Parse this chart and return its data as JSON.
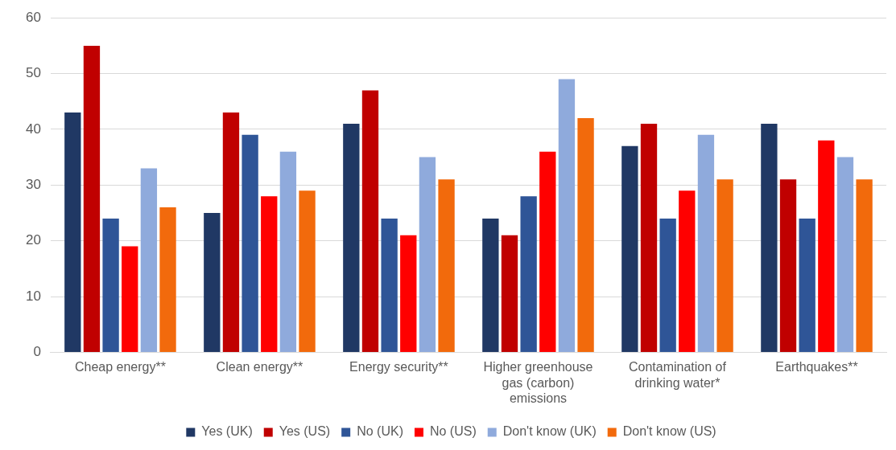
{
  "chart_data": {
    "type": "bar",
    "categories": [
      "Cheap energy**",
      "Clean energy**",
      "Energy security**",
      "Higher greenhouse gas (carbon) emissions",
      "Contamination of drinking water*",
      "Earthquakes**"
    ],
    "series": [
      {
        "name": "Yes (UK)",
        "color": "#203864",
        "values": [
          43,
          25,
          41,
          24,
          37,
          41
        ]
      },
      {
        "name": "Yes (US)",
        "color": "#c00000",
        "values": [
          55,
          43,
          47,
          21,
          41,
          31
        ]
      },
      {
        "name": "No (UK)",
        "color": "#2f5597",
        "values": [
          24,
          39,
          24,
          28,
          24,
          24
        ]
      },
      {
        "name": "No (US)",
        "color": "#ff0000",
        "values": [
          19,
          28,
          21,
          36,
          29,
          38
        ]
      },
      {
        "name": "Don't know (UK)",
        "color": "#8faadc",
        "values": [
          33,
          36,
          35,
          49,
          39,
          35
        ]
      },
      {
        "name": "Don't know (US)",
        "color": "#f26a0c",
        "values": [
          26,
          29,
          31,
          42,
          31,
          31
        ]
      }
    ],
    "ylim": [
      0,
      60
    ],
    "yticks": [
      0,
      10,
      20,
      30,
      40,
      50,
      60
    ],
    "grid": "y",
    "legend": "bottom"
  }
}
